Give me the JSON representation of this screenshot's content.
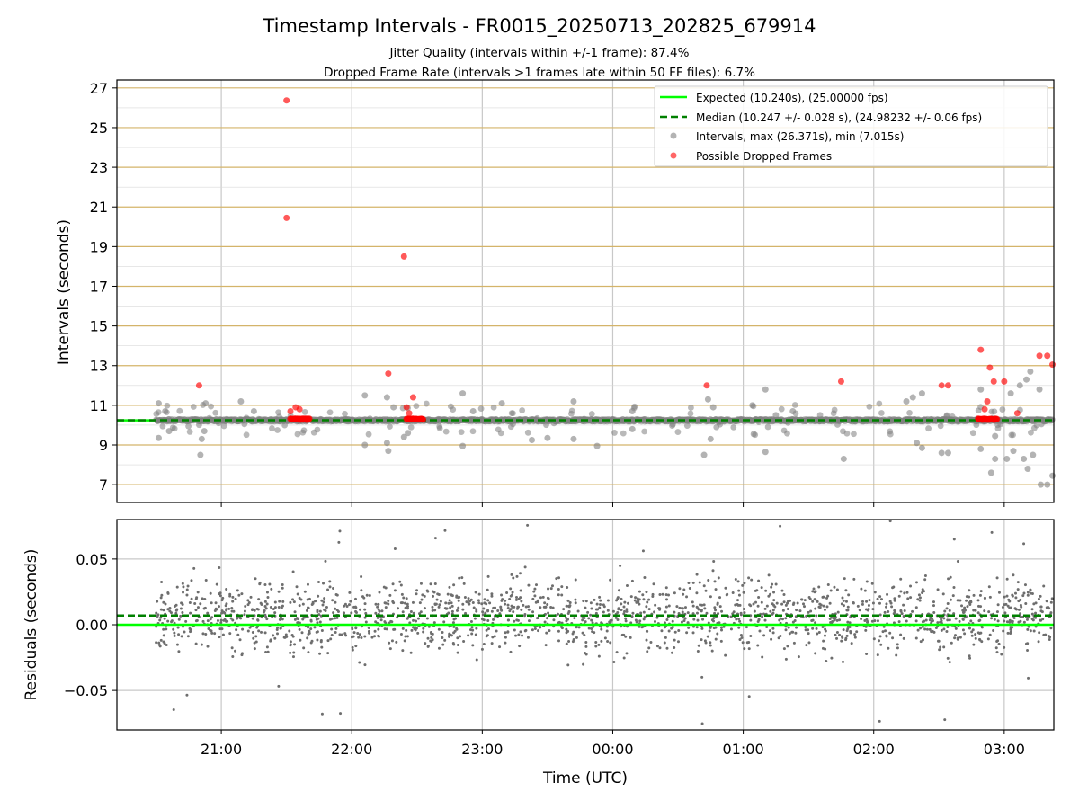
{
  "chart_data": {
    "title": "Timestamp Intervals - FR0015_20250713_202825_679914",
    "subtitles": [
      "Jitter Quality (intervals within +/-1 frame): 87.4%",
      "Dropped Frame Rate (intervals >1 frames late within 50 FF files): 6.7%"
    ],
    "xlabel": "Time (UTC)",
    "x_ticks": [
      "21:00",
      "22:00",
      "23:00",
      "00:00",
      "01:00",
      "02:00",
      "03:00"
    ],
    "panels": [
      {
        "type": "scatter",
        "ylabel": "Intervals (seconds)",
        "ylim": [
          6.1,
          27.4
        ],
        "y_ticks": [
          "7",
          "9",
          "11",
          "13",
          "15",
          "17",
          "19",
          "21",
          "23",
          "25",
          "27"
        ],
        "grid": true,
        "legend_position": "top-right",
        "legend": [
          "Expected (10.240s), (25.00000 fps)",
          "Median (10.247 +/- 0.028 s), (24.98232 +/- 0.06 fps)",
          "Intervals, max (26.371s), min (7.015s)",
          "Possible Dropped Frames"
        ],
        "expected_value": 10.24,
        "median_value": 10.247,
        "colors": {
          "expected": "#00ff00",
          "median": "#008000",
          "intervals": "#808080",
          "dropped": "#ff0000",
          "grid_major": "#d4b46a"
        },
        "dropped_points": [
          {
            "t": 20.83,
            "y": 12.0
          },
          {
            "t": 21.5,
            "y": 26.37
          },
          {
            "t": 21.5,
            "y": 20.45
          },
          {
            "t": 21.53,
            "y": 10.7
          },
          {
            "t": 21.57,
            "y": 10.9
          },
          {
            "t": 21.6,
            "y": 10.8
          },
          {
            "t": 22.28,
            "y": 12.6
          },
          {
            "t": 22.4,
            "y": 18.5
          },
          {
            "t": 22.42,
            "y": 10.9
          },
          {
            "t": 22.47,
            "y": 11.4
          },
          {
            "t": 22.44,
            "y": 10.6
          },
          {
            "t": 24.72,
            "y": 12.0
          },
          {
            "t": 25.75,
            "y": 12.2
          },
          {
            "t": 26.52,
            "y": 12.0
          },
          {
            "t": 26.57,
            "y": 12.0
          },
          {
            "t": 26.82,
            "y": 13.8
          },
          {
            "t": 26.85,
            "y": 10.8
          },
          {
            "t": 26.87,
            "y": 11.2
          },
          {
            "t": 26.89,
            "y": 12.9
          },
          {
            "t": 26.92,
            "y": 12.2
          },
          {
            "t": 27.0,
            "y": 12.2
          },
          {
            "t": 27.1,
            "y": 10.6
          },
          {
            "t": 27.27,
            "y": 13.5
          },
          {
            "t": 27.33,
            "y": 13.5
          },
          {
            "t": 27.37,
            "y": 13.05
          }
        ],
        "dropped_clusters": [
          {
            "start": 21.53,
            "end": 21.68,
            "y": 10.3
          },
          {
            "start": 22.42,
            "end": 22.55,
            "y": 10.3
          },
          {
            "start": 26.8,
            "end": 26.95,
            "y": 10.3
          }
        ],
        "interval_outliers": [
          {
            "t": 20.52,
            "y": 11.1
          },
          {
            "t": 20.52,
            "y": 9.35
          },
          {
            "t": 20.57,
            "y": 10.7
          },
          {
            "t": 20.6,
            "y": 9.7
          },
          {
            "t": 20.84,
            "y": 8.5
          },
          {
            "t": 20.85,
            "y": 9.3
          },
          {
            "t": 20.87,
            "y": 9.7
          },
          {
            "t": 20.88,
            "y": 11.1
          },
          {
            "t": 21.15,
            "y": 11.2
          },
          {
            "t": 21.25,
            "y": 10.7
          },
          {
            "t": 22.1,
            "y": 11.5
          },
          {
            "t": 22.1,
            "y": 9.0
          },
          {
            "t": 22.27,
            "y": 9.1
          },
          {
            "t": 22.27,
            "y": 11.4
          },
          {
            "t": 22.28,
            "y": 8.7
          },
          {
            "t": 22.32,
            "y": 10.9
          },
          {
            "t": 22.4,
            "y": 9.4
          },
          {
            "t": 22.43,
            "y": 9.6
          },
          {
            "t": 22.85,
            "y": 8.95
          },
          {
            "t": 22.85,
            "y": 11.6
          },
          {
            "t": 22.93,
            "y": 10.7
          },
          {
            "t": 23.15,
            "y": 11.1
          },
          {
            "t": 23.38,
            "y": 9.25
          },
          {
            "t": 23.5,
            "y": 9.35
          },
          {
            "t": 23.7,
            "y": 11.2
          },
          {
            "t": 23.7,
            "y": 9.3
          },
          {
            "t": 23.88,
            "y": 8.95
          },
          {
            "t": 24.15,
            "y": 10.7
          },
          {
            "t": 24.15,
            "y": 9.8
          },
          {
            "t": 24.7,
            "y": 8.5
          },
          {
            "t": 24.73,
            "y": 11.3
          },
          {
            "t": 24.75,
            "y": 9.3
          },
          {
            "t": 24.77,
            "y": 10.9
          },
          {
            "t": 25.07,
            "y": 11.0
          },
          {
            "t": 25.08,
            "y": 9.55
          },
          {
            "t": 25.17,
            "y": 11.8
          },
          {
            "t": 25.17,
            "y": 8.65
          },
          {
            "t": 25.25,
            "y": 10.5
          },
          {
            "t": 25.38,
            "y": 10.7
          },
          {
            "t": 25.77,
            "y": 8.3
          },
          {
            "t": 26.25,
            "y": 11.2
          },
          {
            "t": 26.3,
            "y": 11.4
          },
          {
            "t": 26.33,
            "y": 9.1
          },
          {
            "t": 26.37,
            "y": 11.6
          },
          {
            "t": 26.37,
            "y": 8.85
          },
          {
            "t": 26.52,
            "y": 8.6
          },
          {
            "t": 26.57,
            "y": 8.6
          },
          {
            "t": 26.82,
            "y": 8.8
          },
          {
            "t": 26.82,
            "y": 11.8
          },
          {
            "t": 26.9,
            "y": 7.6
          },
          {
            "t": 26.93,
            "y": 8.3
          },
          {
            "t": 26.93,
            "y": 9.45
          },
          {
            "t": 27.02,
            "y": 8.3
          },
          {
            "t": 27.05,
            "y": 11.6
          },
          {
            "t": 27.07,
            "y": 8.7
          },
          {
            "t": 27.12,
            "y": 12.0
          },
          {
            "t": 27.15,
            "y": 8.3
          },
          {
            "t": 27.17,
            "y": 12.3
          },
          {
            "t": 27.18,
            "y": 7.8
          },
          {
            "t": 27.2,
            "y": 12.7
          },
          {
            "t": 27.22,
            "y": 8.5
          },
          {
            "t": 27.27,
            "y": 11.8
          },
          {
            "t": 27.28,
            "y": 7.0
          },
          {
            "t": 27.33,
            "y": 7.0
          },
          {
            "t": 27.37,
            "y": 7.45
          }
        ]
      },
      {
        "type": "scatter",
        "ylabel": "Residuals (seconds)",
        "ylim": [
          -0.08,
          0.08
        ],
        "y_ticks": [
          "−0.05",
          "0.00",
          "0.05"
        ],
        "grid": true,
        "expected_residual": 0.0,
        "median_residual": 0.007,
        "scatter_extent": {
          "x": [
            20.5,
            27.38
          ],
          "y": [
            -0.08,
            0.08
          ]
        }
      }
    ],
    "x_range_hours": [
      20.2,
      27.38
    ]
  }
}
